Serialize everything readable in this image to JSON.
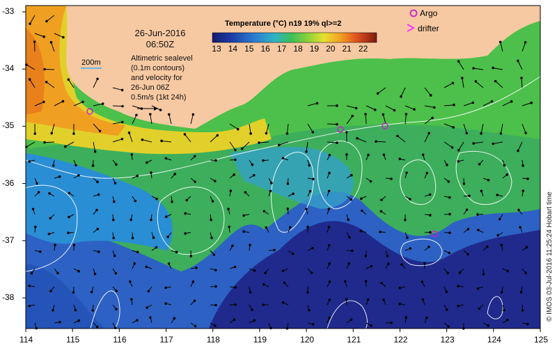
{
  "header": {
    "date": "26-Jun-2016",
    "time": "06:50Z",
    "isobath_label": "200m",
    "info_lines": [
      "Altimetric sealevel",
      "(0.1m contours)",
      "and velocity for",
      "26-Jun 06Z",
      "0.5m/s (1kt 24h)"
    ]
  },
  "colorbar": {
    "title": "Temperature (°C) n19 19% ql>=2",
    "ticks": [
      "13",
      "14",
      "15",
      "16",
      "17",
      "18",
      "19",
      "20",
      "21",
      "22"
    ]
  },
  "legend": {
    "argo_label": "Argo",
    "drifter_label": "drifter",
    "argo_color": "#cc22cc",
    "drifter_color": "#ff33ff"
  },
  "axes": {
    "x_ticks": [
      "114",
      "115",
      "116",
      "117",
      "118",
      "119",
      "120",
      "121",
      "122",
      "123",
      "124",
      "125"
    ],
    "y_ticks": [
      "-33",
      "-34",
      "-35",
      "-36",
      "-37",
      "-38"
    ]
  },
  "credit": "© IMOS 03-Jul-2016 11:25:24 Hobart time",
  "colors": {
    "land": "#f7c9a2",
    "cold": "#1f2a8c",
    "cool": "#2f6fcf",
    "mid": "#3fb06a",
    "warm": "#7ccf3a",
    "hot": "#f0a020",
    "contour": "#ffffff"
  }
}
